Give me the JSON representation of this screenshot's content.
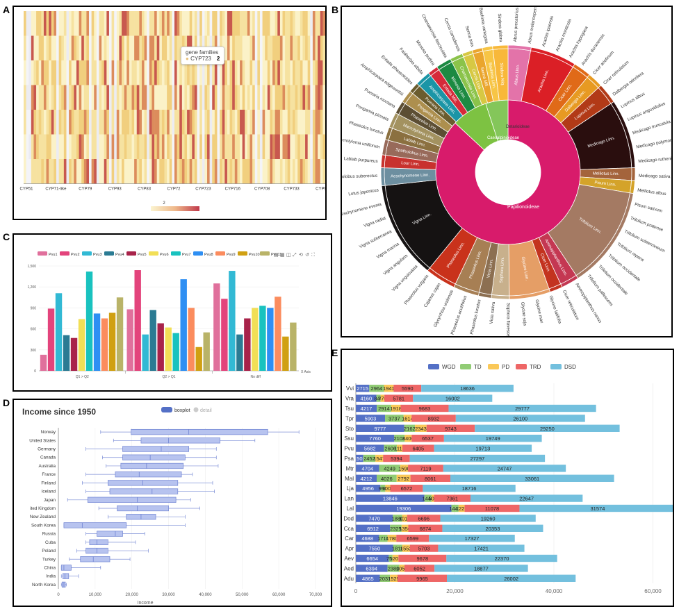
{
  "panels": {
    "a": "A",
    "b": "B",
    "c": "C",
    "d": "D",
    "e": "E"
  },
  "heatmap": {
    "tooltip_title": "gene families",
    "tooltip_name": "CYP723",
    "tooltip_value": "2",
    "visualmap_min": "2",
    "x_labels": [
      "CYP51",
      "CYP71-like",
      "CYP79",
      "CYP93",
      "CYP83",
      "CYP72",
      "CYP723",
      "CYP716",
      "CYP708",
      "CYP733",
      "CYP9"
    ]
  },
  "sunburst": {
    "inner": [
      {
        "label": "Papilionoideae",
        "color": "#d81b6b",
        "start": 0,
        "end": 313
      },
      {
        "label": "Caesalpinioideae",
        "color": "#7dc242",
        "start": 313,
        "end": 342
      },
      {
        "label": "Detarioideae",
        "color": "#84c65a",
        "start": 342,
        "end": 360
      }
    ],
    "middle": [
      {
        "label": "Abrus Linn.",
        "color": "#e373a9",
        "span": 9
      },
      {
        "label": "Arachis Linn.",
        "color": "#db1f26",
        "span": 18
      },
      {
        "label": "Cicer Linn.",
        "color": "#e06a18",
        "span": 7
      },
      {
        "label": "Dalbergia Linn.",
        "color": "#e79a22",
        "span": 6
      },
      {
        "label": "Lupinus Linn.",
        "color": "#b23a17",
        "span": 8
      },
      {
        "label": "Medicago Linn.",
        "color": "#2a0e0e",
        "span": 27
      },
      {
        "label": "Melilotus Linn.",
        "color": "#a4643c",
        "span": 5
      },
      {
        "label": "Pisum Linn.",
        "color": "#d4a32a",
        "span": 5
      },
      {
        "label": "Trifolium Linn.",
        "color": "#a47a63",
        "span": 40
      },
      {
        "label": "Ammopiptanthus Linn.",
        "color": "#c43852",
        "span": 7
      },
      {
        "label": "Cicer Linn.",
        "color": "#c3331f",
        "span": 5
      },
      {
        "label": "Glycine Linn.",
        "color": "#e59e66",
        "span": 16
      },
      {
        "label": "Sophora Linn.",
        "color": "#c8b08c",
        "span": 7
      },
      {
        "label": "Vicia Linn.",
        "color": "#8c6f51",
        "span": 5
      },
      {
        "label": "Phaseolus Linn.",
        "color": "#a77f54",
        "span": 10
      },
      {
        "label": "Phaseolus Linn.",
        "color": "#c9321b",
        "span": 12
      },
      {
        "label": "Vigna Linn.",
        "color": "#151212",
        "span": 38
      },
      {
        "label": "Aeschynomene Linn.",
        "color": "#6d8fa0",
        "span": 7
      },
      {
        "label": "Lour Linn.",
        "color": "#c8322e",
        "span": 5
      },
      {
        "label": "Spatholobus Linn.",
        "color": "#986a5a",
        "span": 6
      },
      {
        "label": "Lablab Linn.",
        "color": "#8b7040",
        "span": 5
      },
      {
        "label": "Macrotyloma Linn.",
        "color": "#a39260",
        "span": 6
      },
      {
        "label": "Phaseolus Linn.",
        "color": "#5c4e33",
        "span": 5
      },
      {
        "label": "Pongamia Linn.",
        "color": "#ad8f4e",
        "span": 5
      },
      {
        "label": "Pueraria Linn.",
        "color": "#6b5c2e",
        "span": 4
      },
      {
        "label": "Amphicarpaea Linn.",
        "color": "#1b95a6",
        "span": 6
      },
      {
        "label": "Entada Mill.",
        "color": "#d62a3a",
        "span": 4
      },
      {
        "label": "Mimosa Linn.",
        "color": "#1c8a42",
        "span": 6
      },
      {
        "label": "Chamaecrista Linn.",
        "color": "#8bc34a",
        "span": 5
      },
      {
        "label": "Cercis Linn.",
        "color": "#d7c843",
        "span": 4
      },
      {
        "label": "Senna Mill.",
        "color": "#eaa52d",
        "span": 4
      },
      {
        "label": "Bauhinia Linn.",
        "color": "#f7c545",
        "span": 4
      },
      {
        "label": "Sindora Miq.",
        "color": "#f8b83a",
        "span": 6
      }
    ],
    "outer_labels": [
      "Abrus precatorius",
      "Abrus melanospermus",
      "Arachis ipaensis",
      "Arachis monticola",
      "Arachis hypogaea",
      "Arachis duranensis",
      "Cicer arietinum",
      "Cicer reticulatum",
      "Dalbergia odorifera",
      "Lupinus albus",
      "Lupinus angustifolius",
      "Medicago truncatula",
      "Medicago polymorpha",
      "Medicago ruthenica",
      "Medicago sativa",
      "Melilotus albus",
      "Pisum sativum",
      "Trifolium pratense",
      "Trifolium subterraneum",
      "Trifolium repens",
      "Trifolium occidentale",
      "Trifolium occidentale",
      "Trifolium pallescens",
      "Ammopiptanthus nanus",
      "Cicer reticulatum",
      "Glycine latifolia",
      "Glycine max",
      "Glycine soja",
      "Sophora flavescens",
      "Vicia sativa",
      "Phaseolus lunatus",
      "Phaseolus acutifolius",
      "Glycyrrhiza uralensis",
      "Cajanus cajan",
      "Phaseolus vulgaris",
      "Vigna unguiculata",
      "Vigna angularis",
      "Vigna marina",
      "Vigna subterranea",
      "Vigna radiat",
      "Aeschynomene evenia",
      "Lotus japonicus",
      "Spatholobus suberectus",
      "Lablab purpureus",
      "Macrotyloma uniflorum",
      "Phaseolus lunatus",
      "Pongamia pinnata",
      "Pueraria montana",
      "Amphicarpaea edgeworthii",
      "Entada phaseoloides",
      "Faidherbia albida",
      "Mimosa pudica",
      "Chamaecrista fasciculata",
      "Cercis canadensis",
      "Senna tora",
      "Bauhinia variegata",
      "Sindora glabra"
    ]
  },
  "bar_c": {
    "legend": [
      "Pvu1",
      "Pvu2",
      "Pvu3",
      "Pvu4",
      "Pvu5",
      "Pvu6",
      "Pvu7",
      "Pvu8",
      "Pvu9",
      "Pvu10",
      "Pvu11"
    ],
    "colors": [
      "#e0709c",
      "#e3447c",
      "#32b9d4",
      "#2b7b93",
      "#a8234a",
      "#f2df56",
      "#19c2bf",
      "#2e8ff3",
      "#fb8c5e",
      "#d0a012",
      "#b9b368"
    ],
    "categories": [
      "Q1 > Q2",
      "Q2 > Q1",
      "No diff"
    ],
    "yticks": [
      "0",
      "300",
      "600",
      "900",
      "1,200",
      "1,500"
    ],
    "ymax": 1500,
    "xaxis_name": "X Axis",
    "series": [
      [
        230,
        880,
        1250
      ],
      [
        890,
        1440,
        1030
      ],
      [
        1110,
        520,
        1430
      ],
      [
        510,
        870,
        520
      ],
      [
        470,
        680,
        750
      ],
      [
        740,
        620,
        900
      ],
      [
        1420,
        540,
        930
      ],
      [
        820,
        1310,
        900
      ],
      [
        750,
        900,
        1060
      ],
      [
        830,
        340,
        490
      ],
      [
        1050,
        550,
        690
      ]
    ]
  },
  "box_d": {
    "title": "Income since 1950",
    "legend": [
      "boxplot",
      "detail"
    ],
    "xlabel": "Income",
    "xticks": [
      "0",
      "10,000",
      "20,000",
      "30,000",
      "40,000",
      "50,000",
      "60,000",
      "70,000"
    ],
    "xmax": 70000,
    "countries": [
      {
        "name": "Norway",
        "w1": 11500,
        "q1": 19800,
        "med": 35500,
        "q3": 57000,
        "w2": 65500
      },
      {
        "name": "United States",
        "w1": 15000,
        "q1": 22500,
        "med": 30000,
        "q3": 44000,
        "w2": 53500
      },
      {
        "name": "Germany",
        "w1": 7500,
        "q1": 17500,
        "med": 28000,
        "q3": 35500,
        "w2": 43000
      },
      {
        "name": "Canada",
        "w1": 12000,
        "q1": 17500,
        "med": 25000,
        "q3": 34500,
        "w2": 43000
      },
      {
        "name": "Australia",
        "w1": 13000,
        "q1": 17000,
        "med": 24000,
        "q3": 34000,
        "w2": 43500
      },
      {
        "name": "France",
        "w1": 7500,
        "q1": 15500,
        "med": 22000,
        "q3": 33500,
        "w2": 36500
      },
      {
        "name": "Finland",
        "w1": 6500,
        "q1": 13500,
        "med": 23000,
        "q3": 32500,
        "w2": 42000
      },
      {
        "name": "Iceland",
        "w1": 7500,
        "q1": 14000,
        "med": 25500,
        "q3": 32500,
        "w2": 42500
      },
      {
        "name": "Japan",
        "w1": 2500,
        "q1": 8000,
        "med": 21500,
        "q3": 32000,
        "w2": 36000
      },
      {
        "name": "ited Kingdom",
        "w1": 11000,
        "q1": 16000,
        "med": 21500,
        "q3": 30000,
        "w2": 38500
      },
      {
        "name": "New Zealand",
        "w1": 13500,
        "q1": 18500,
        "med": 22500,
        "q3": 26500,
        "w2": 34500
      },
      {
        "name": "South Korea",
        "w1": 1500,
        "q1": 1500,
        "med": 6500,
        "q3": 18500,
        "w2": 34500
      },
      {
        "name": "Russia",
        "w1": 7500,
        "q1": 10500,
        "med": 15500,
        "q3": 17500,
        "w2": 23500
      },
      {
        "name": "Cuba",
        "w1": 7500,
        "q1": 8500,
        "med": 10500,
        "q3": 13500,
        "w2": 21000
      },
      {
        "name": "Poland",
        "w1": 5000,
        "q1": 7500,
        "med": 10500,
        "q3": 13500,
        "w2": 24500
      },
      {
        "name": "Turkey",
        "w1": 3000,
        "q1": 6000,
        "med": 9500,
        "q3": 14000,
        "w2": 19500
      },
      {
        "name": "China",
        "w1": 800,
        "q1": 800,
        "med": 1500,
        "q3": 3500,
        "w2": 11500
      },
      {
        "name": "India",
        "w1": 800,
        "q1": 1200,
        "med": 1800,
        "q3": 2800,
        "w2": 5500
      },
      {
        "name": "North Korea",
        "w1": 800,
        "q1": 1000,
        "med": 1500,
        "q3": 1900,
        "w2": 2200
      }
    ]
  },
  "stack_e": {
    "legend": [
      "WGD",
      "TD",
      "PD",
      "TRD",
      "DSD"
    ],
    "colors": [
      "#5470c6",
      "#91cc75",
      "#fac858",
      "#ee6666",
      "#73c0de"
    ],
    "xticks": [
      "0",
      "20,000",
      "40,000",
      "60,000"
    ],
    "xmax": 64000,
    "rows": [
      {
        "name": "Vvi",
        "v": [
          2715,
          2964,
          1941,
          5590,
          18636
        ]
      },
      {
        "name": "Vra",
        "v": [
          4160,
          840,
          770,
          5781,
          16002
        ]
      },
      {
        "name": "Tsu",
        "v": [
          4217,
          2914,
          1918,
          9683,
          29777
        ]
      },
      {
        "name": "Tpr",
        "v": [
          5903,
          3737,
          1614,
          8932,
          26100
        ]
      },
      {
        "name": "Sto",
        "v": [
          9777,
          2162,
          2343,
          9743,
          29250
        ]
      },
      {
        "name": "Ssu",
        "v": [
          7760,
          2108,
          1400,
          6537,
          19749
        ]
      },
      {
        "name": "Pvu",
        "v": [
          5682,
          2606,
          1112,
          6405,
          19713
        ]
      },
      {
        "name": "Psa",
        "v": [
          1502,
          2452,
          1547,
          5394,
          27297
        ]
      },
      {
        "name": "Mtr",
        "v": [
          4704,
          4249,
          1590,
          7119,
          24747
        ]
      },
      {
        "name": "Mal",
        "v": [
          4212,
          4026,
          2792,
          8061,
          33061
        ]
      },
      {
        "name": "Lja",
        "v": [
          4956,
          990,
          1009,
          6572,
          18716
        ]
      },
      {
        "name": "Lan",
        "v": [
          13846,
          1448,
          500,
          7361,
          22647
        ]
      },
      {
        "name": "Lal",
        "v": [
          19306,
          1442,
          1222,
          11078,
          31574
        ]
      },
      {
        "name": "Dod",
        "v": [
          7470,
          1880,
          1013,
          6696,
          19260
        ]
      },
      {
        "name": "Cca",
        "v": [
          6912,
          2325,
          1356,
          6874,
          20353
        ]
      },
      {
        "name": "Car",
        "v": [
          4688,
          1710,
          1780,
          6599,
          17327
        ]
      },
      {
        "name": "Apr",
        "v": [
          7550,
          1818,
          1552,
          5703,
          17421
        ]
      },
      {
        "name": "Aev",
        "v": [
          6654,
          750,
          1207,
          9678,
          22370
        ]
      },
      {
        "name": "Aed",
        "v": [
          6394,
          2380,
          1055,
          6052,
          18877
        ]
      },
      {
        "name": "Adu",
        "v": [
          4865,
          2031,
          1525,
          9965,
          26002
        ]
      }
    ]
  }
}
